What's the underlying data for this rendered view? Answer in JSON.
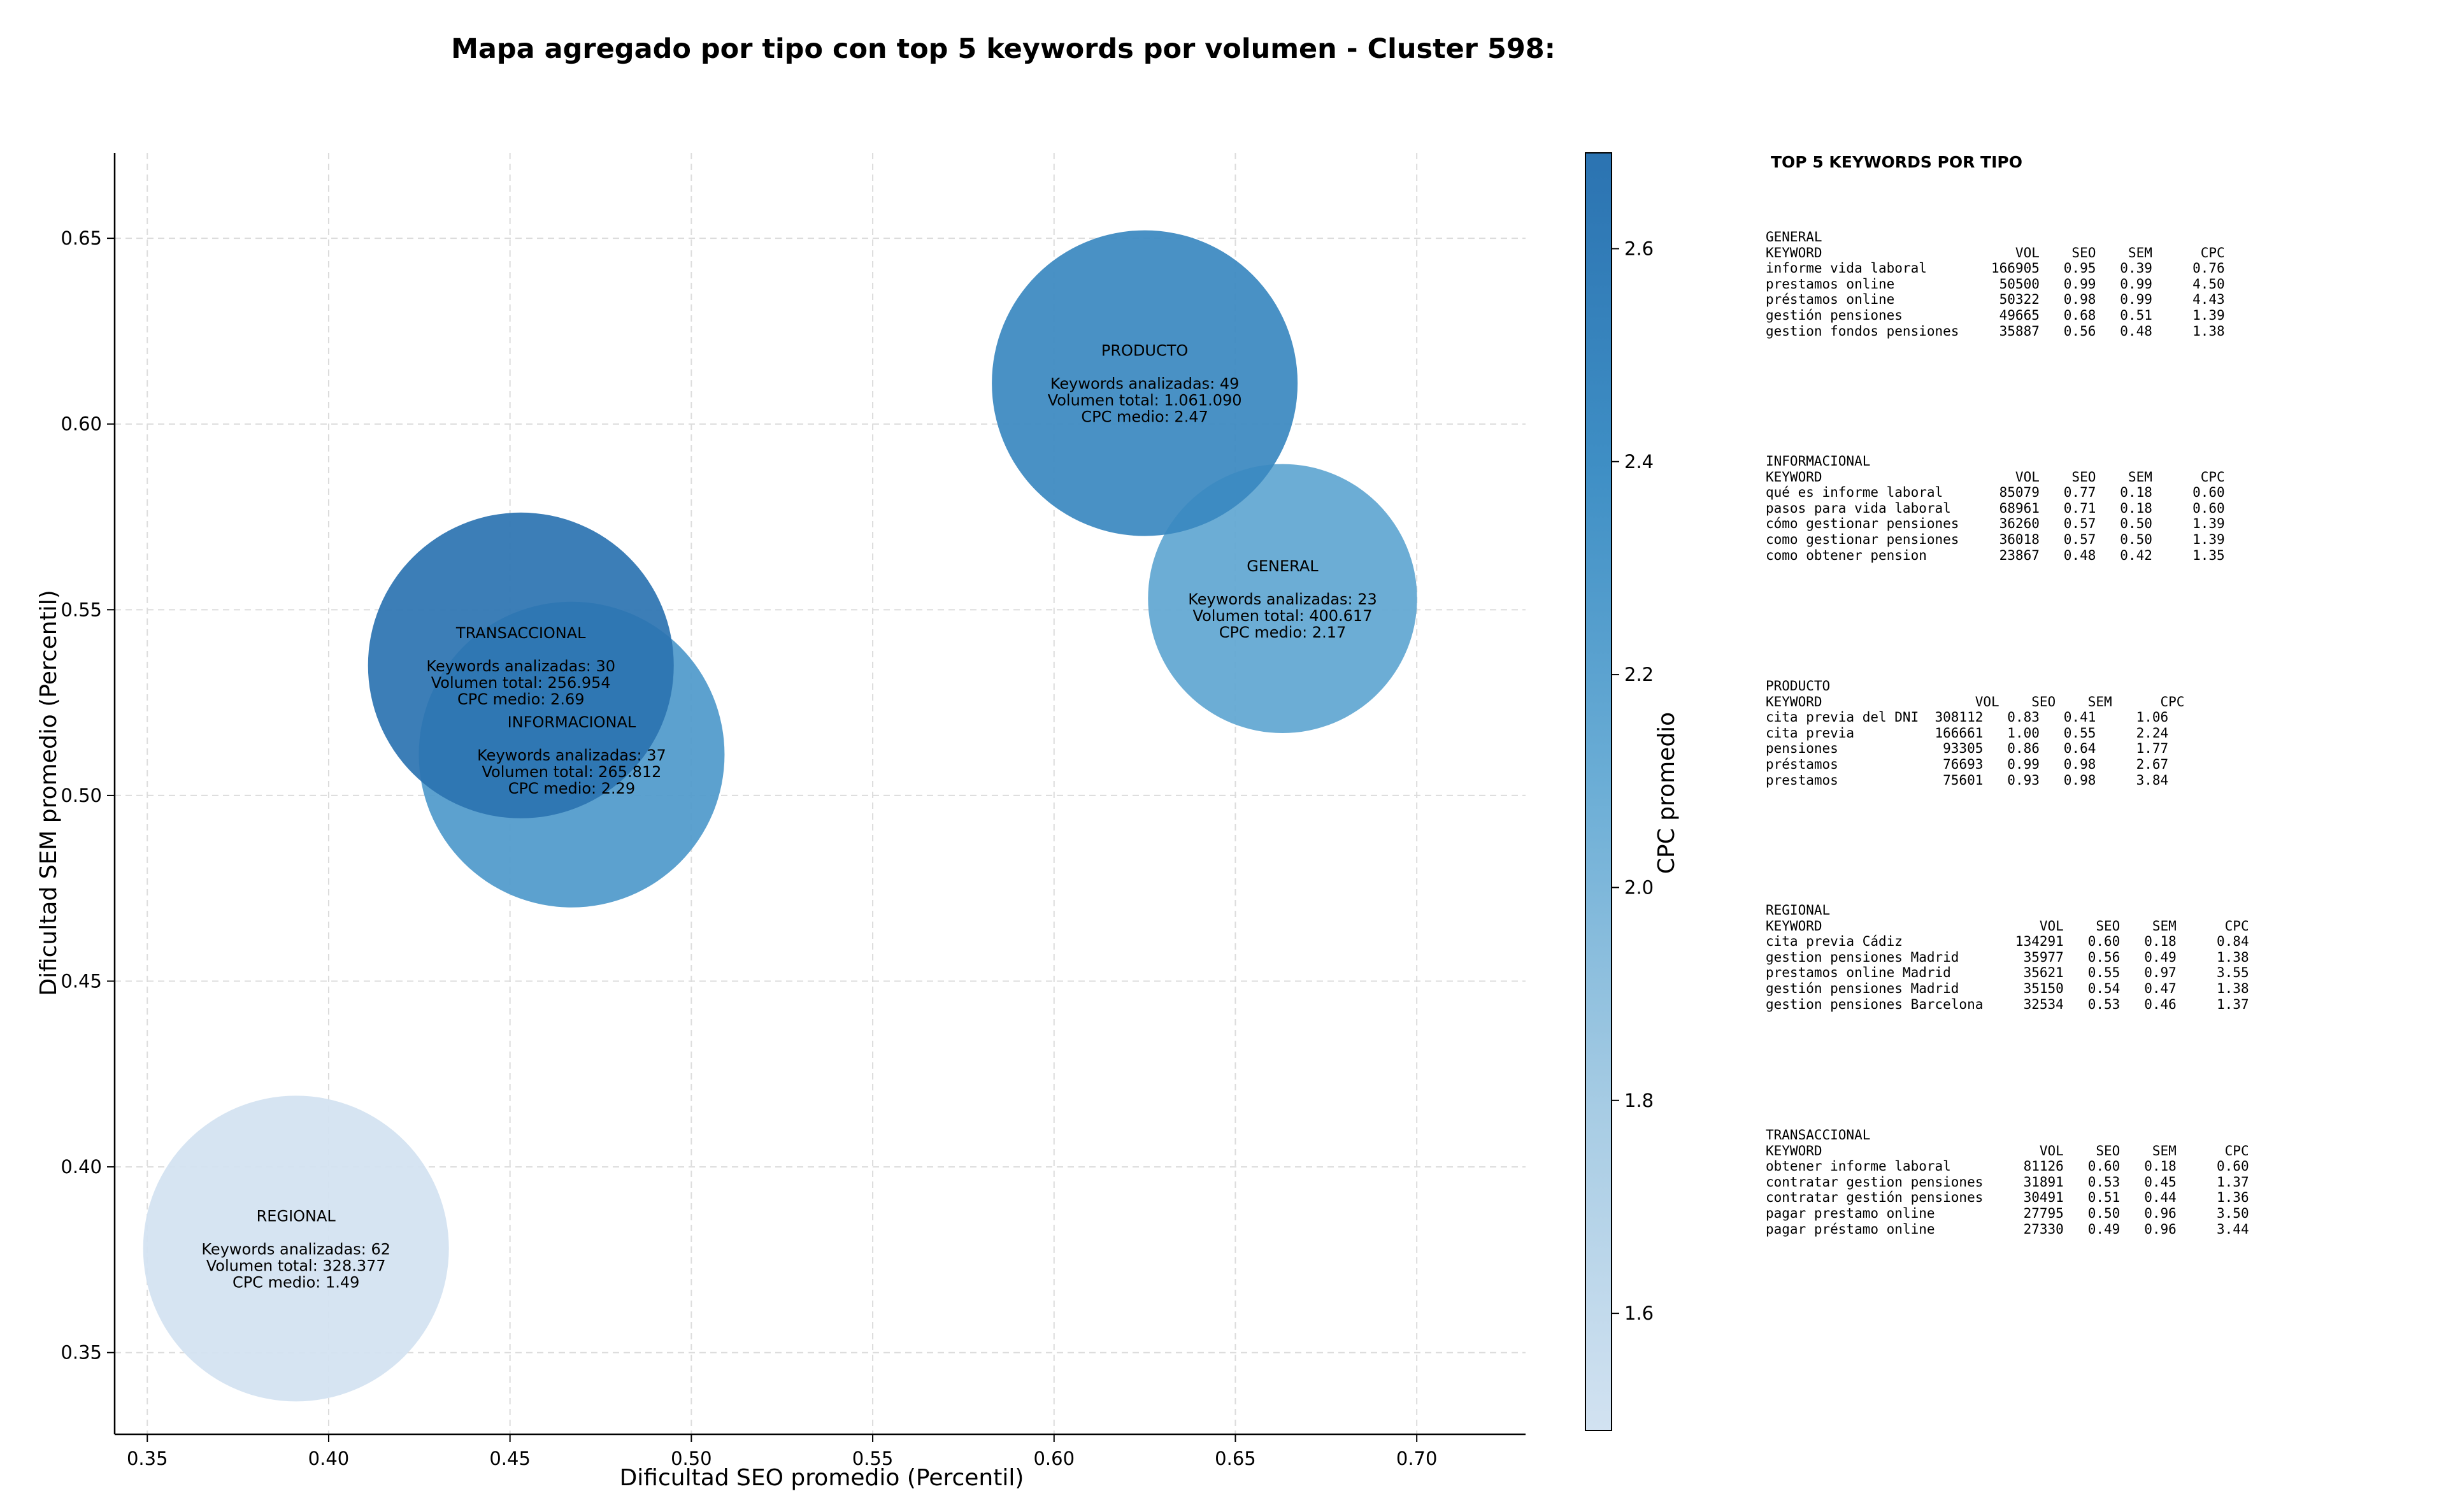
{
  "chart_data": {
    "type": "scatter",
    "title": "Mapa agregado por tipo con top 5 keywords por volumen - Cluster 598:",
    "xlabel": "Dificultad SEO promedio (Percentil)",
    "ylabel": "Dificultad SEM promedio (Percentil)",
    "xlim": [
      0.341,
      0.73
    ],
    "ylim": [
      0.328,
      0.673
    ],
    "x_ticks": [
      "0.35",
      "0.40",
      "0.45",
      "0.50",
      "0.55",
      "0.60",
      "0.65",
      "0.70"
    ],
    "y_ticks": [
      "0.35",
      "0.40",
      "0.45",
      "0.50",
      "0.55",
      "0.60",
      "0.65"
    ],
    "grid": true,
    "colorbar": {
      "label": "CPC promedio",
      "range": [
        1.49,
        2.69
      ],
      "ticks": [
        "1.6",
        "1.8",
        "2.0",
        "2.2",
        "2.4",
        "2.6"
      ]
    },
    "points": [
      {
        "name": "REGIONAL",
        "x": 0.391,
        "y": 0.378,
        "keywords": 62,
        "volume": 328377,
        "cpc": 1.49,
        "lines": [
          "Keywords analizadas: 62",
          "Volumen total: 328.377",
          "CPC medio: 1.49"
        ]
      },
      {
        "name": "INFORMACIONAL",
        "x": 0.467,
        "y": 0.511,
        "keywords": 37,
        "volume": 265812,
        "cpc": 2.29,
        "lines": [
          "Keywords analizadas: 37",
          "Volumen total: 265.812",
          "CPC medio: 2.29"
        ]
      },
      {
        "name": "TRANSACCIONAL",
        "x": 0.453,
        "y": 0.535,
        "keywords": 30,
        "volume": 256954,
        "cpc": 2.69,
        "lines": [
          "Keywords analizadas: 30",
          "Volumen total: 256.954",
          "CPC medio: 2.69"
        ]
      },
      {
        "name": "GENERAL",
        "x": 0.663,
        "y": 0.553,
        "keywords": 23,
        "volume": 400617,
        "cpc": 2.17,
        "lines": [
          "Keywords analizadas: 23",
          "Volumen total: 400.617",
          "CPC medio: 2.17"
        ]
      },
      {
        "name": "PRODUCTO",
        "x": 0.625,
        "y": 0.611,
        "keywords": 49,
        "volume": 1061090,
        "cpc": 2.47,
        "lines": [
          "Keywords analizadas: 49",
          "Volumen total: 1.061.090",
          "CPC medio: 2.47"
        ]
      }
    ]
  },
  "panel": {
    "heading": "TOP 5 KEYWORDS POR TIPO",
    "blocks": [
      {
        "text": "GENERAL\nKEYWORD                        VOL    SEO    SEM      CPC\ninforme vida laboral        166905   0.95   0.39     0.76\nprestamos online             50500   0.99   0.99     4.50\npréstamos online             50322   0.98   0.99     4.43\ngestión pensiones            49665   0.68   0.51     1.39\ngestion fondos pensiones     35887   0.56   0.48     1.38"
      },
      {
        "text": "INFORMACIONAL\nKEYWORD                        VOL    SEO    SEM      CPC\nqué es informe laboral       85079   0.77   0.18     0.60\npasos para vida laboral      68961   0.71   0.18     0.60\ncómo gestionar pensiones     36260   0.57   0.50     1.39\ncomo gestionar pensiones     36018   0.57   0.50     1.39\ncomo obtener pension         23867   0.48   0.42     1.35"
      },
      {
        "text": "PRODUCTO\nKEYWORD                   VOL    SEO    SEM      CPC\ncita previa del DNI  308112   0.83   0.41     1.06\ncita previa          166661   1.00   0.55     2.24\npensiones             93305   0.86   0.64     1.77\npréstamos             76693   0.99   0.98     2.67\nprestamos             75601   0.93   0.98     3.84"
      },
      {
        "text": "REGIONAL\nKEYWORD                           VOL    SEO    SEM      CPC\ncita previa Cádiz              134291   0.60   0.18     0.84\ngestion pensiones Madrid        35977   0.56   0.49     1.38\nprestamos online Madrid         35621   0.55   0.97     3.55\ngestión pensiones Madrid        35150   0.54   0.47     1.38\ngestion pensiones Barcelona     32534   0.53   0.46     1.37"
      },
      {
        "text": "TRANSACCIONAL\nKEYWORD                           VOL    SEO    SEM      CPC\nobtener informe laboral         81126   0.60   0.18     0.60\ncontratar gestion pensiones     31891   0.53   0.45     1.37\ncontratar gestión pensiones     30491   0.51   0.44     1.36\npagar prestamo online           27795   0.50   0.96     3.50\npagar préstamo online           27330   0.49   0.96     3.44"
      }
    ]
  }
}
